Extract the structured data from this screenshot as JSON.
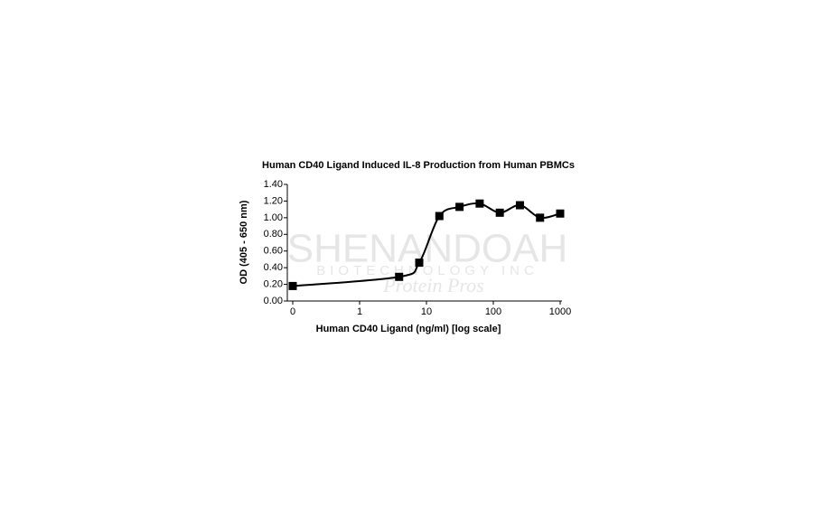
{
  "chart_data": {
    "type": "line",
    "title": "Human CD40 Ligand Induced IL-8 Production from Human PBMCs",
    "x_label": "Human CD40 Ligand  (ng/ml) [log scale]",
    "y_label": "OD (405 - 650 nm)",
    "watermark": [
      "SHENANDOAH",
      "BIOTECHNOLOGY INC",
      "Protein Pros"
    ],
    "x": [
      0.1,
      3.9,
      7.8,
      15.6,
      31.25,
      62.5,
      125,
      250,
      500,
      1000
    ],
    "series": [
      {
        "color": "#000000",
        "values": [
          0.18,
          0.29,
          0.46,
          1.02,
          1.13,
          1.17,
          1.06,
          1.15,
          1.0,
          1.05
        ]
      }
    ],
    "xscale": "log",
    "xlim": [
      0.1,
      1000
    ],
    "xticks": [
      {
        "value": 0.1,
        "label": "0"
      },
      1,
      10,
      100,
      1000
    ],
    "ylim": [
      0,
      1.4
    ],
    "yticks": [
      {
        "value": 0,
        "label": "0.00"
      },
      {
        "value": 0.2,
        "label": "0.20"
      },
      {
        "value": 0.4,
        "label": "0.40"
      },
      {
        "value": 0.6,
        "label": "0.60"
      },
      {
        "value": 0.8,
        "label": "0.80"
      },
      {
        "value": 1.0,
        "label": "1.00"
      },
      {
        "value": 1.2,
        "label": "1.20"
      },
      {
        "value": 1.4,
        "label": "1.40"
      }
    ],
    "grid": false,
    "smooth": true
  }
}
